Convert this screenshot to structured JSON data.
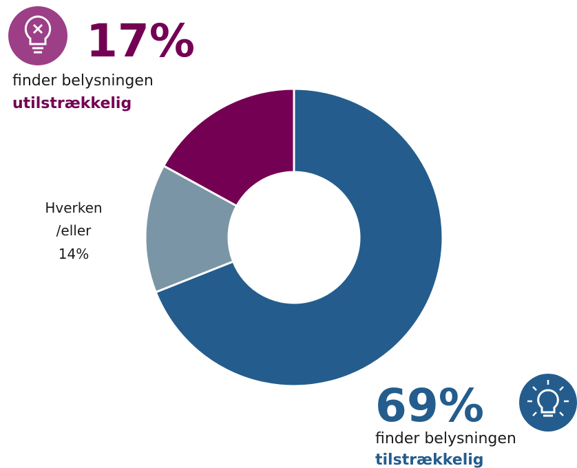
{
  "chart_data": {
    "type": "donut",
    "categories": [
      "tilstrækkelig",
      "Hverken /eller",
      "utilstrækkelig"
    ],
    "label_prefix": [
      "finder belysningen",
      null,
      "finder belysningen"
    ],
    "values": [
      69,
      14,
      17
    ],
    "value_labels": [
      "69%",
      "14%",
      "17%"
    ],
    "colors": [
      "#245d8d",
      "#7a96a6",
      "#740053"
    ]
  }
}
